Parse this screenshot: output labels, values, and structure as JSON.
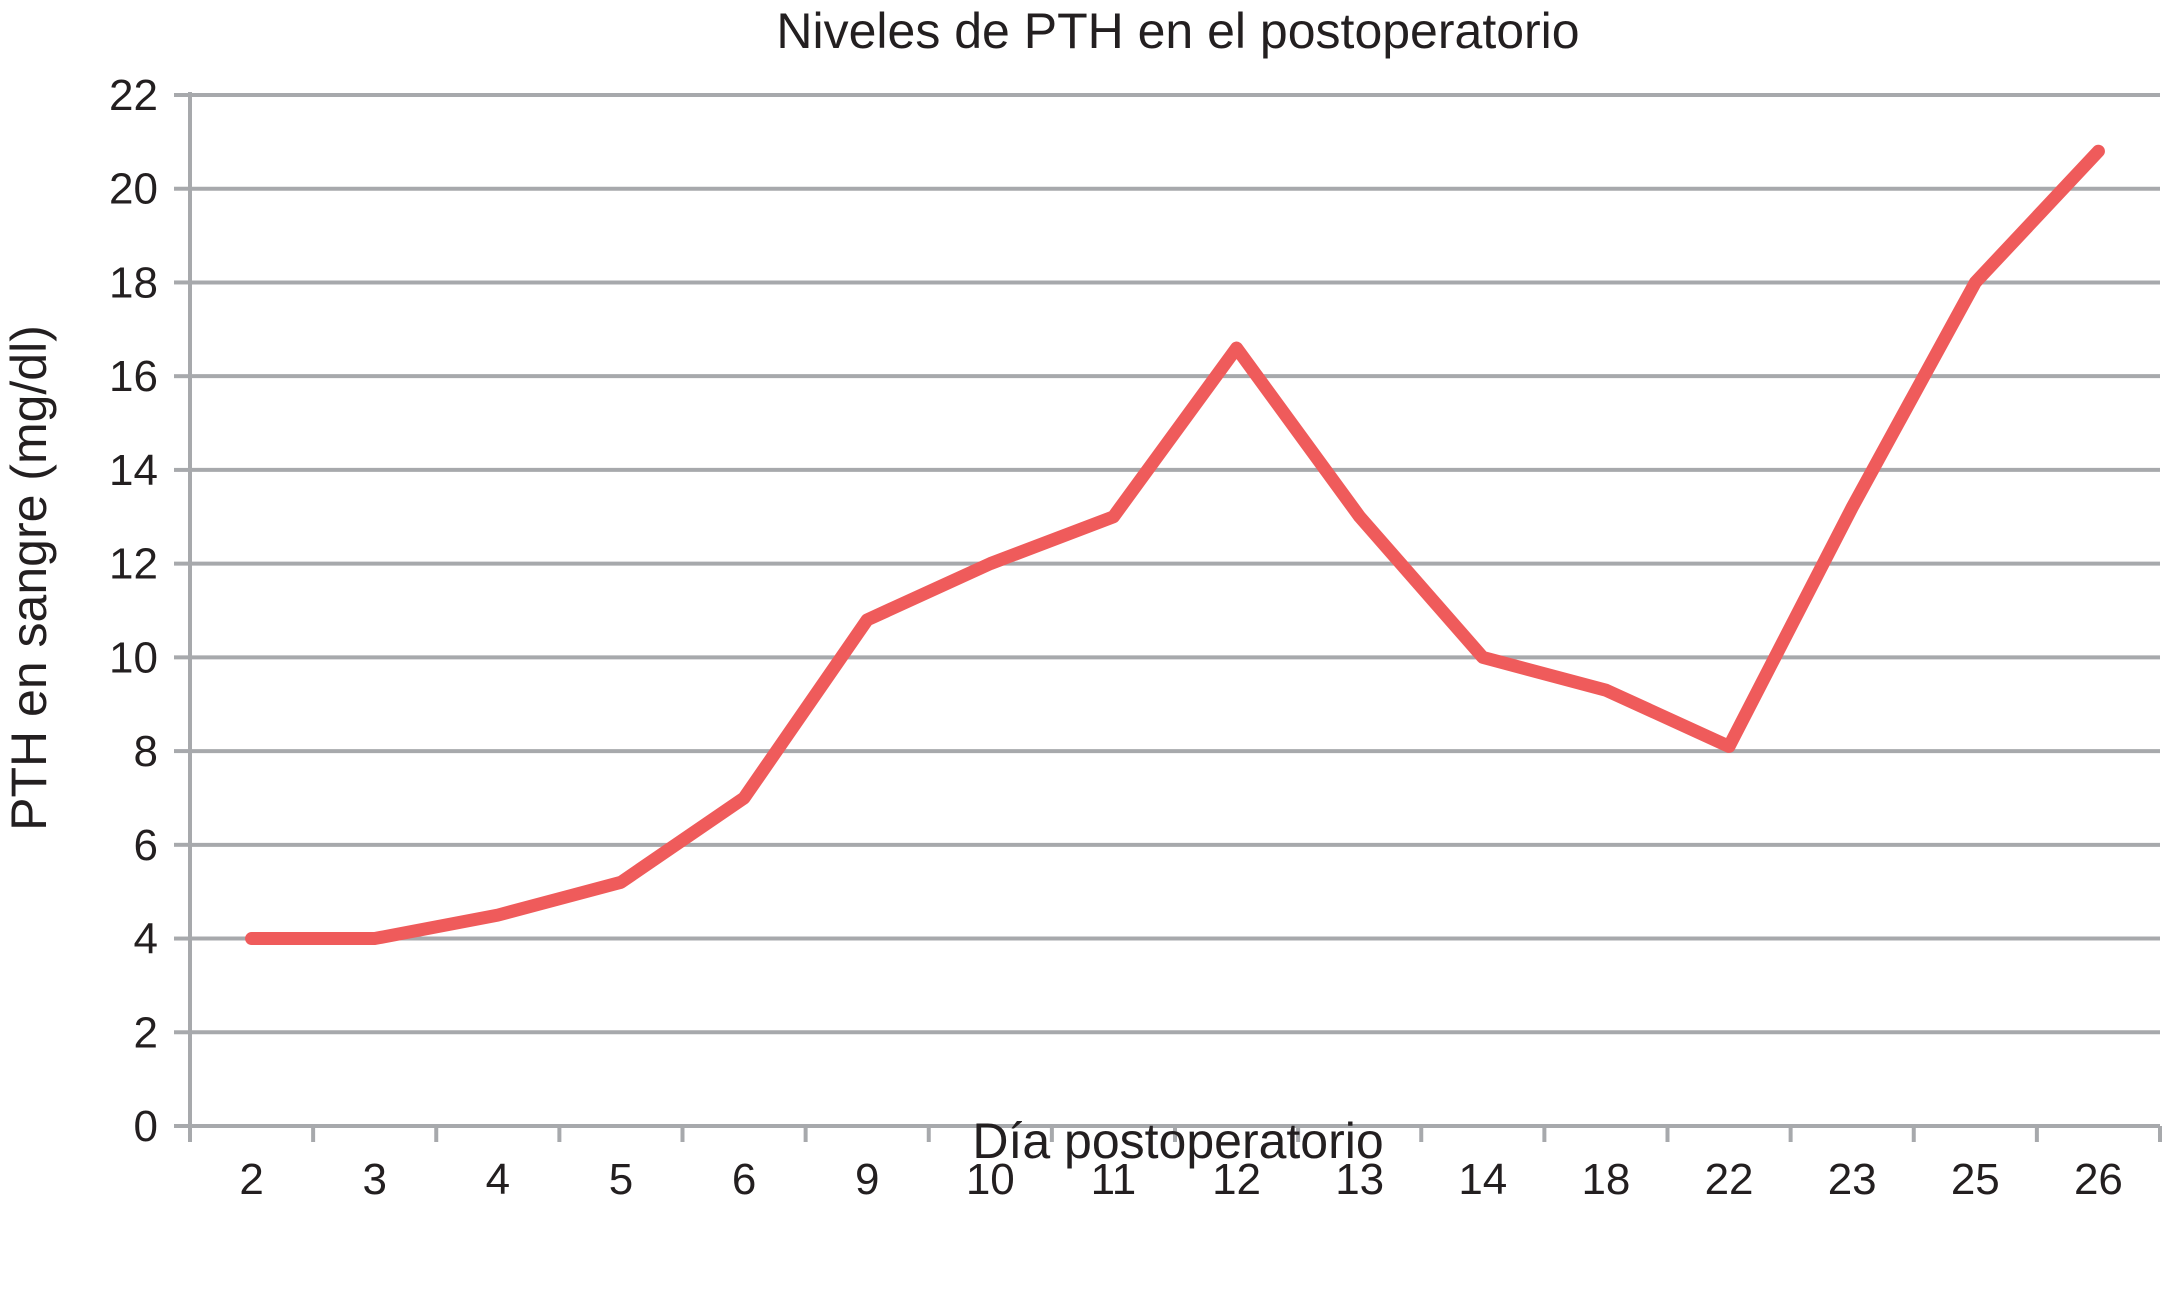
{
  "chart_data": {
    "type": "line",
    "title": "Niveles de PTH en el postoperatorio",
    "xlabel": "Día postoperatorio",
    "ylabel": "PTH en sangre (mg/dl)",
    "categories": [
      "2",
      "3",
      "4",
      "5",
      "6",
      "9",
      "10",
      "11",
      "12",
      "13",
      "14",
      "18",
      "22",
      "23",
      "25",
      "26"
    ],
    "series": [
      {
        "values": [
          4,
          4,
          4.5,
          5.2,
          7,
          10.8,
          12,
          13,
          16.6,
          13,
          10,
          9.3,
          8.1,
          13.2,
          18,
          20.8
        ],
        "color": "#ef5b5b"
      }
    ],
    "ylim": [
      0,
      22
    ],
    "yticks": [
      0,
      2,
      4,
      6,
      8,
      10,
      12,
      14,
      16,
      18,
      20,
      22
    ],
    "grid": "horizontal",
    "legend": "none"
  }
}
